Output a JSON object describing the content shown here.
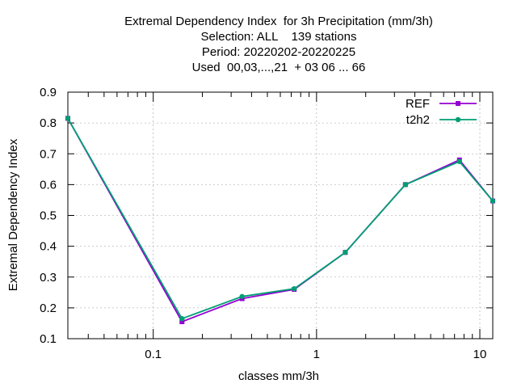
{
  "chart_data": {
    "type": "line",
    "title_lines": [
      "Extremal Dependency Index  for 3h Precipitation (mm/3h)",
      "Selection: ALL    139 stations",
      "Period: 20220202-20220225",
      "Used  00,03,...,21  + 03 06 ... 66"
    ],
    "xlabel": "classes mm/3h",
    "ylabel": "Extremal Dependency Index",
    "x_scale": "log",
    "xlim": [
      0.03,
      12
    ],
    "ylim": [
      0.1,
      0.9
    ],
    "x_ticks": [
      0.1,
      1,
      10
    ],
    "x_tick_labels": [
      "0.1",
      "1",
      "10"
    ],
    "y_ticks": [
      0.1,
      0.2,
      0.3,
      0.4,
      0.5,
      0.6,
      0.7,
      0.8,
      0.9
    ],
    "y_tick_labels": [
      "0.1",
      "0.2",
      "0.3",
      "0.4",
      "0.5",
      "0.6",
      "0.7",
      "0.8",
      "0.9"
    ],
    "grid": true,
    "legend_position": "top-right",
    "x": [
      0.03,
      0.15,
      0.35,
      0.73,
      1.5,
      3.5,
      7.5,
      12
    ],
    "series": [
      {
        "name": "REF",
        "color": "#9400d3",
        "marker": "square",
        "values": [
          0.815,
          0.155,
          0.23,
          0.26,
          0.38,
          0.6,
          0.68,
          0.547
        ]
      },
      {
        "name": "t2h2",
        "color": "#009e73",
        "marker": "circle",
        "values": [
          0.815,
          0.165,
          0.237,
          0.262,
          0.38,
          0.6,
          0.675,
          0.547
        ]
      }
    ]
  }
}
